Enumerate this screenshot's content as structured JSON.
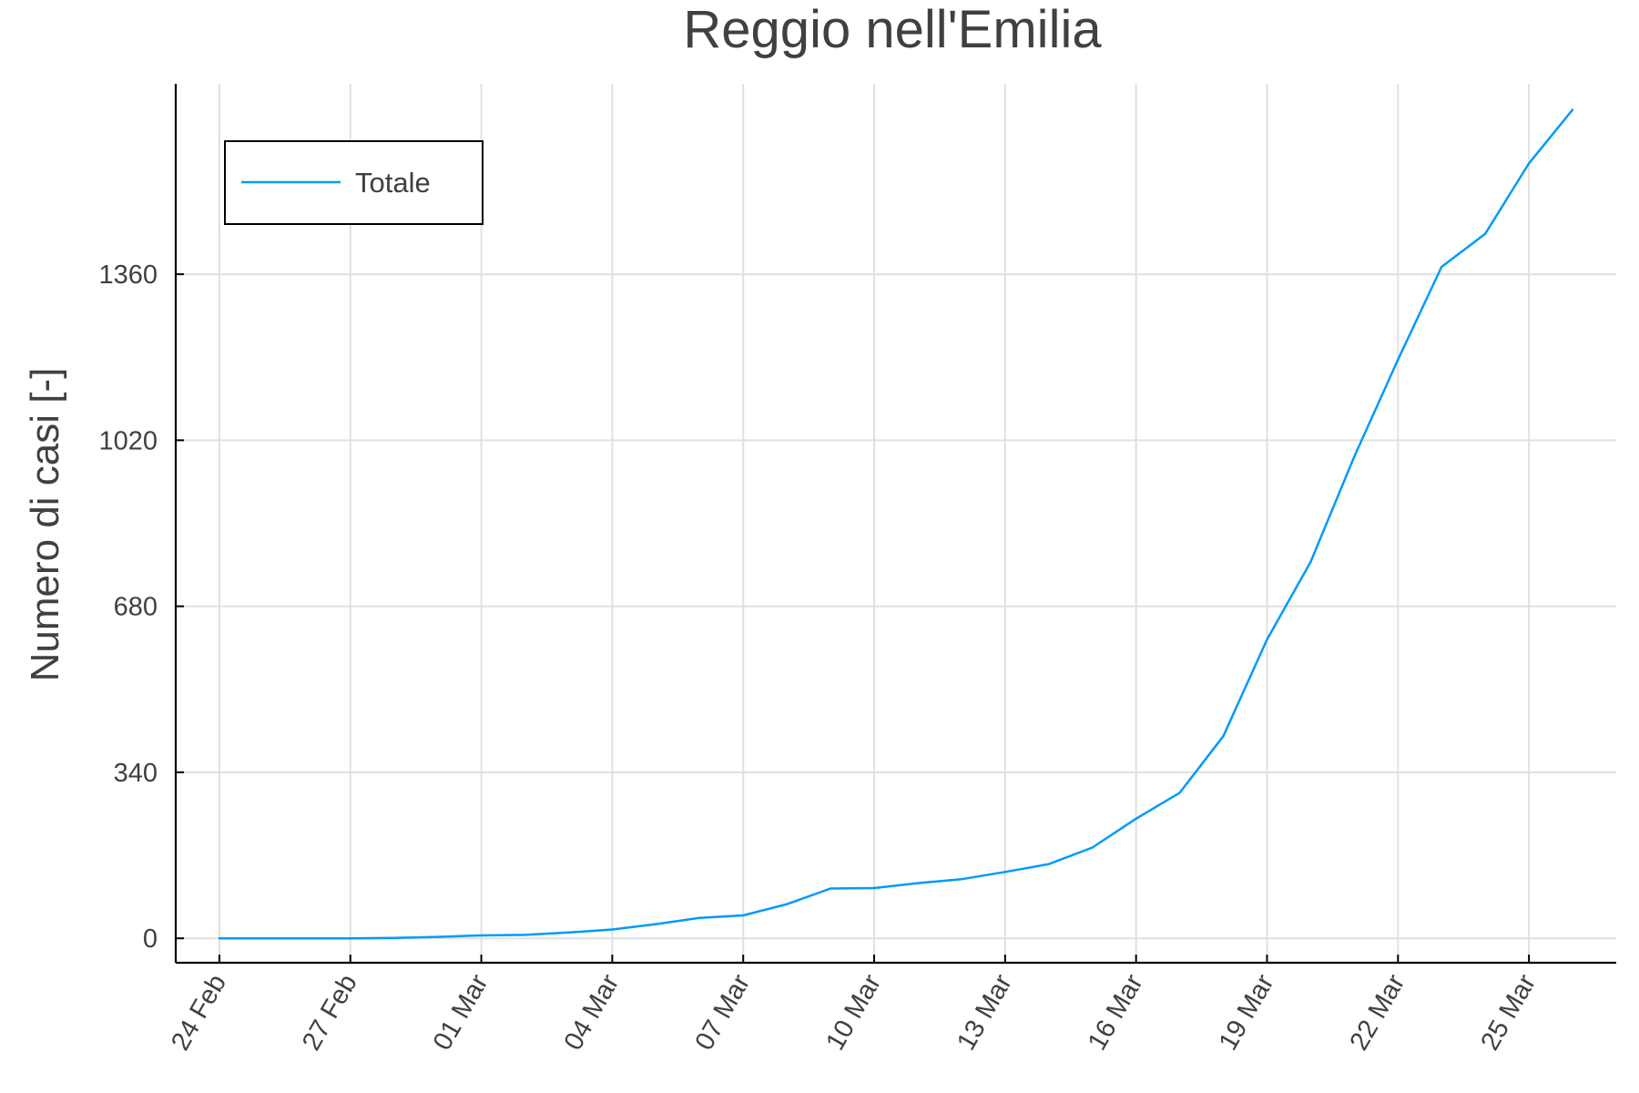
{
  "chart_data": {
    "type": "line",
    "title": "Reggio nell'Emilia",
    "xlabel": "",
    "ylabel": "Numero di casi [-]",
    "x_ticks": [
      "24 Feb",
      "27 Feb",
      "01 Mar",
      "04 Mar",
      "07 Mar",
      "10 Mar",
      "13 Mar",
      "16 Mar",
      "19 Mar",
      "22 Mar",
      "25 Mar"
    ],
    "y_ticks": [
      0,
      340,
      680,
      1020,
      1360
    ],
    "xlim": [
      "2020-02-23",
      "2020-03-27"
    ],
    "ylim": [
      -50,
      1750
    ],
    "grid": true,
    "legend_position": "top-left",
    "series": [
      {
        "name": "Totale",
        "color": "#009af9",
        "x": [
          "2020-02-24",
          "2020-02-25",
          "2020-02-26",
          "2020-02-27",
          "2020-02-28",
          "2020-02-29",
          "2020-03-01",
          "2020-03-02",
          "2020-03-03",
          "2020-03-04",
          "2020-03-05",
          "2020-03-06",
          "2020-03-07",
          "2020-03-08",
          "2020-03-09",
          "2020-03-10",
          "2020-03-11",
          "2020-03-12",
          "2020-03-13",
          "2020-03-14",
          "2020-03-15",
          "2020-03-16",
          "2020-03-17",
          "2020-03-18",
          "2020-03-19",
          "2020-03-20",
          "2020-03-21",
          "2020-03-22",
          "2020-03-23",
          "2020-03-24",
          "2020-03-25",
          "2020-03-26"
        ],
        "y": [
          0,
          0,
          0,
          0,
          1,
          3,
          6,
          7,
          12,
          18,
          29,
          42,
          47,
          70,
          102,
          103,
          113,
          121,
          136,
          152,
          186,
          245,
          298,
          414,
          612,
          771,
          987,
          1185,
          1375,
          1443,
          1587,
          1697
        ]
      }
    ]
  }
}
